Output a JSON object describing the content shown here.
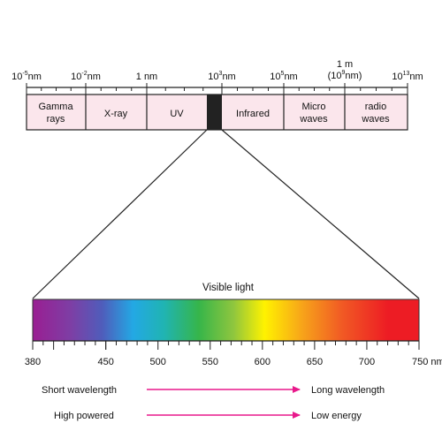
{
  "scale": {
    "ticks": [
      {
        "base": "10",
        "exp": "-5",
        "unit": "nm"
      },
      {
        "base": "10",
        "exp": "-2",
        "unit": "nm"
      },
      {
        "base": "1 nm",
        "exp": "",
        "unit": ""
      },
      {
        "base": "10",
        "exp": "3",
        "unit": "nm"
      },
      {
        "base": "10",
        "exp": "5",
        "unit": "nm"
      },
      {
        "base": "1 m",
        "exp": "",
        "unit": "",
        "sub": {
          "open": "(10",
          "exp": "9",
          "close": "nm)"
        }
      },
      {
        "base": "10",
        "exp": "13",
        "unit": "nm"
      }
    ],
    "regions": [
      {
        "lines": [
          "Gamma",
          "rays"
        ]
      },
      {
        "lines": [
          "X-ray"
        ]
      },
      {
        "lines": [
          "UV"
        ]
      },
      {
        "lines": [
          "Infrared"
        ]
      },
      {
        "lines": [
          "Micro",
          "waves"
        ]
      },
      {
        "lines": [
          "radio",
          "waves"
        ]
      }
    ]
  },
  "visible": {
    "title": "Visible light",
    "axis_labels": [
      "380",
      "450",
      "500",
      "550",
      "600",
      "650",
      "700",
      "750 nm"
    ],
    "spectrum_stops": [
      {
        "offset": "0%",
        "color": "#9a1e92"
      },
      {
        "offset": "10%",
        "color": "#7d3fa5"
      },
      {
        "offset": "18%",
        "color": "#4f5dbb"
      },
      {
        "offset": "26%",
        "color": "#23a8e4"
      },
      {
        "offset": "34%",
        "color": "#20b4b2"
      },
      {
        "offset": "43%",
        "color": "#36b54a"
      },
      {
        "offset": "52%",
        "color": "#8fc63e"
      },
      {
        "offset": "60%",
        "color": "#fff200"
      },
      {
        "offset": "70%",
        "color": "#f7a21a"
      },
      {
        "offset": "80%",
        "color": "#f15a24"
      },
      {
        "offset": "92%",
        "color": "#ed1c24"
      },
      {
        "offset": "100%",
        "color": "#ed1c24"
      }
    ]
  },
  "legend": [
    {
      "left": "Short wavelength",
      "right": "Long wavelength"
    },
    {
      "left": "High powered",
      "right": "Low energy"
    }
  ],
  "colors": {
    "region_fill": "#fbe6ec",
    "visible_band": "#222222",
    "arrow": "#e8198b"
  }
}
